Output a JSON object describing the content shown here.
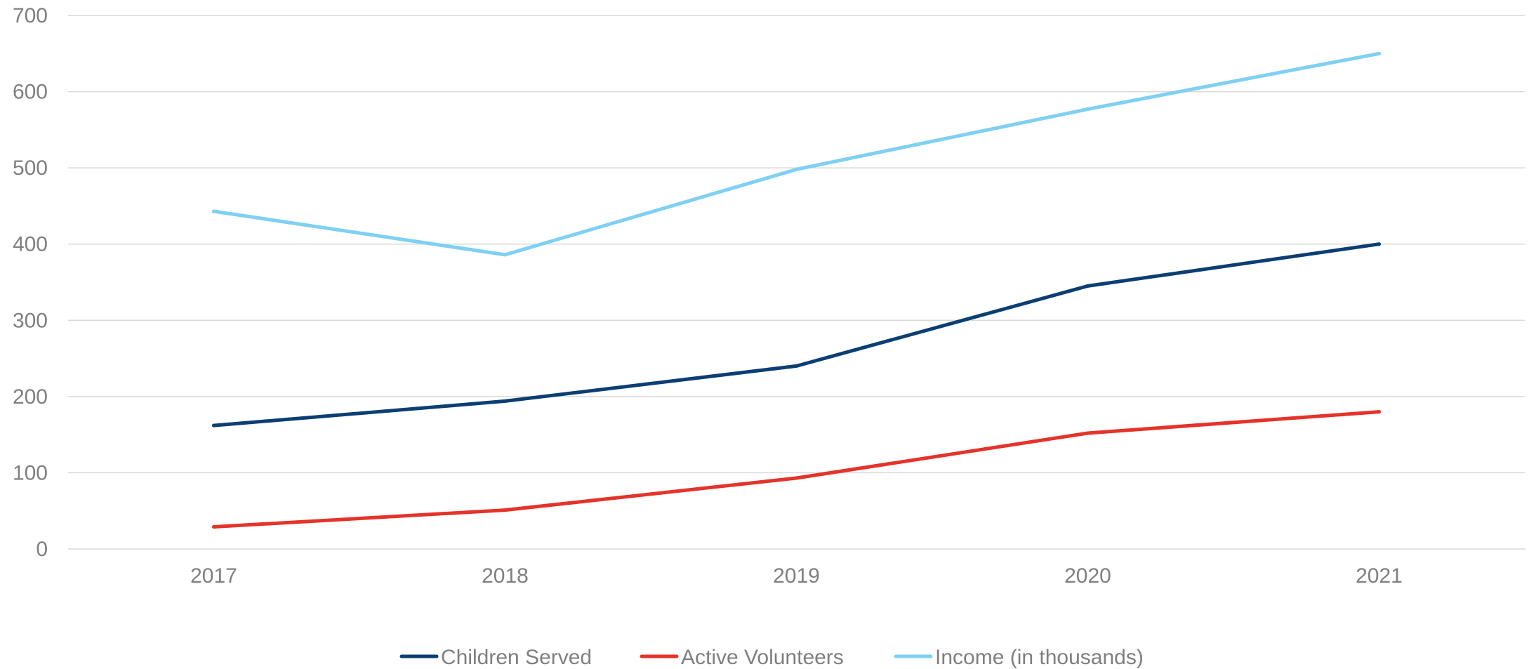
{
  "chart_data": {
    "type": "line",
    "title": "",
    "xlabel": "",
    "ylabel": "",
    "categories": [
      "2017",
      "2018",
      "2019",
      "2020",
      "2021"
    ],
    "ylim": [
      0,
      700
    ],
    "yticks": [
      0,
      100,
      200,
      300,
      400,
      500,
      600,
      700
    ],
    "grid": true,
    "legend_position": "bottom",
    "series": [
      {
        "name": "Children Served",
        "color": "#0b3f73",
        "values": [
          162,
          194,
          240,
          345,
          400
        ]
      },
      {
        "name": "Active Volunteers",
        "color": "#e5332a",
        "values": [
          29,
          51,
          93,
          152,
          180
        ]
      },
      {
        "name": "Income (in thousands)",
        "color": "#7fd0f2",
        "values": [
          443,
          386,
          498,
          577,
          650
        ]
      }
    ]
  }
}
